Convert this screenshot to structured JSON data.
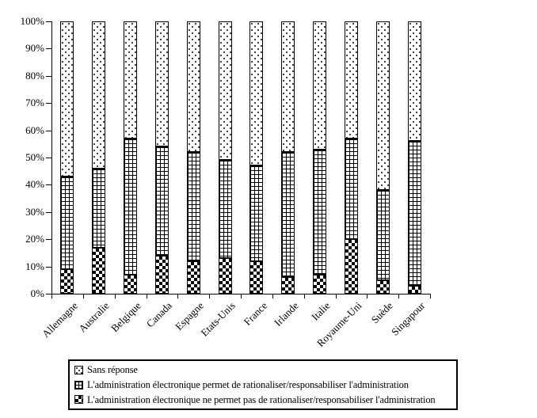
{
  "chart_data": {
    "type": "bar",
    "stacked": true,
    "orientation": "vertical",
    "title": "",
    "categories": [
      "Allemagne",
      "Australie",
      "Belgique",
      "Canada",
      "Espagne",
      "Etats-Unis",
      "France",
      "Irlande",
      "Italie",
      "Royaume-Uni",
      "Suède",
      "Singapour"
    ],
    "series": [
      {
        "name": "Sans réponse",
        "pattern": "dots",
        "stack_position": "top",
        "values": [
          57,
          54,
          43,
          46,
          48,
          51,
          53,
          48,
          47,
          43,
          62,
          44
        ]
      },
      {
        "name": "L'administration électronique permet de rationaliser/responsabiliser l'administration",
        "pattern": "grid",
        "stack_position": "middle",
        "values": [
          34,
          29,
          50,
          40,
          40,
          36,
          35,
          46,
          46,
          37,
          33,
          53
        ]
      },
      {
        "name": "L'administration électronique ne permet pas de rationaliser/responsabiliser l'administration",
        "pattern": "checker",
        "stack_position": "bottom",
        "values": [
          9,
          17,
          7,
          14,
          12,
          13,
          12,
          6,
          7,
          20,
          5,
          3
        ]
      }
    ],
    "xlabel": "",
    "ylabel": "",
    "ylim": [
      0,
      100
    ],
    "y_ticks": [
      "0%",
      "10%",
      "20%",
      "30%",
      "40%",
      "50%",
      "60%",
      "70%",
      "80%",
      "90%",
      "100%"
    ],
    "grid": false,
    "legend_position": "bottom",
    "x_label_rotation_deg": 45
  },
  "legend": {
    "items": [
      {
        "label": "Sans réponse",
        "pattern": "dots"
      },
      {
        "label": "L'administration électronique permet de rationaliser/responsabiliser l'administration",
        "pattern": "grid"
      },
      {
        "label": "L'administration électronique ne permet pas de rationaliser/responsabiliser l'administration",
        "pattern": "checker"
      }
    ]
  },
  "colors": {
    "foreground": "#000000",
    "background": "#ffffff"
  }
}
